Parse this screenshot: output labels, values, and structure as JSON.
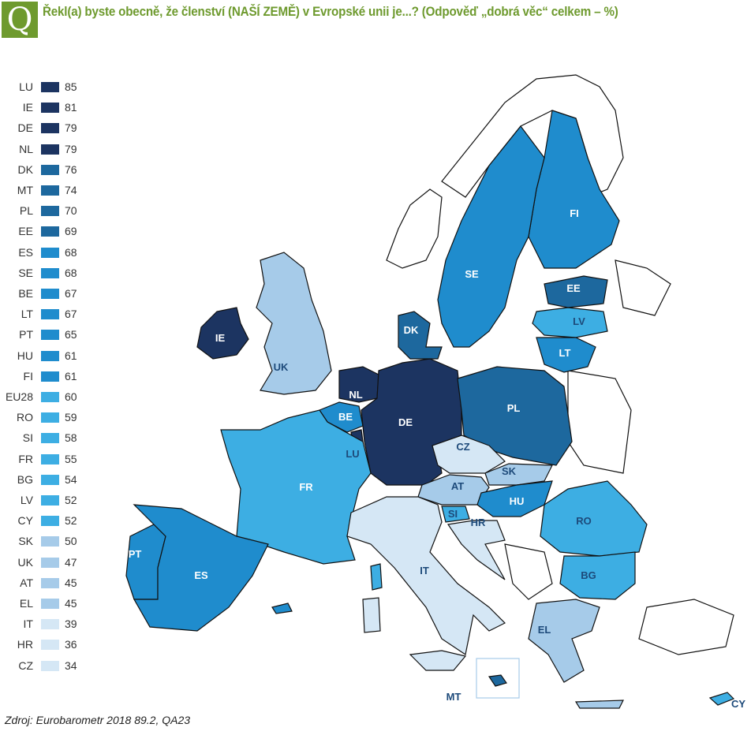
{
  "header": {
    "q_letter": "Q",
    "title": "Řekl(a) byste obecně, že členství (NAŠÍ ZEMĚ) v Evropské unii je...? (Odpověď „dobrá věc“ celkem – %)"
  },
  "colors": {
    "accent": "#6e9a2e",
    "c1": "#1c3461",
    "c2": "#1d689e",
    "c3": "#1f8ccd",
    "c4": "#3daee3",
    "c5": "#a6cbe9",
    "c6": "#d5e7f5"
  },
  "legend": [
    {
      "code": "LU",
      "value": 85,
      "tier": "c1"
    },
    {
      "code": "IE",
      "value": 81,
      "tier": "c1"
    },
    {
      "code": "DE",
      "value": 79,
      "tier": "c1"
    },
    {
      "code": "NL",
      "value": 79,
      "tier": "c1"
    },
    {
      "code": "DK",
      "value": 76,
      "tier": "c2"
    },
    {
      "code": "MT",
      "value": 74,
      "tier": "c2"
    },
    {
      "code": "PL",
      "value": 70,
      "tier": "c2"
    },
    {
      "code": "EE",
      "value": 69,
      "tier": "c2"
    },
    {
      "code": "ES",
      "value": 68,
      "tier": "c3"
    },
    {
      "code": "SE",
      "value": 68,
      "tier": "c3"
    },
    {
      "code": "BE",
      "value": 67,
      "tier": "c3"
    },
    {
      "code": "LT",
      "value": 67,
      "tier": "c3"
    },
    {
      "code": "PT",
      "value": 65,
      "tier": "c3"
    },
    {
      "code": "HU",
      "value": 61,
      "tier": "c3"
    },
    {
      "code": "FI",
      "value": 61,
      "tier": "c3"
    },
    {
      "code": "EU28",
      "value": 60,
      "tier": "c4"
    },
    {
      "code": "RO",
      "value": 59,
      "tier": "c4"
    },
    {
      "code": "SI",
      "value": 58,
      "tier": "c4"
    },
    {
      "code": "FR",
      "value": 55,
      "tier": "c4"
    },
    {
      "code": "BG",
      "value": 54,
      "tier": "c4"
    },
    {
      "code": "LV",
      "value": 52,
      "tier": "c4"
    },
    {
      "code": "CY",
      "value": 52,
      "tier": "c4"
    },
    {
      "code": "SK",
      "value": 50,
      "tier": "c5"
    },
    {
      "code": "UK",
      "value": 47,
      "tier": "c5"
    },
    {
      "code": "AT",
      "value": 45,
      "tier": "c5"
    },
    {
      "code": "EL",
      "value": 45,
      "tier": "c5"
    },
    {
      "code": "IT",
      "value": 39,
      "tier": "c6"
    },
    {
      "code": "HR",
      "value": 36,
      "tier": "c6"
    },
    {
      "code": "CZ",
      "value": 34,
      "tier": "c6"
    }
  ],
  "map_labels": [
    "FI",
    "SE",
    "EE",
    "LV",
    "LT",
    "DK",
    "IE",
    "UK",
    "NL",
    "BE",
    "LU",
    "DE",
    "PL",
    "CZ",
    "SK",
    "AT",
    "HU",
    "SI",
    "HR",
    "RO",
    "BG",
    "FR",
    "PT",
    "ES",
    "IT",
    "EL",
    "MT",
    "CY"
  ],
  "source": "Zdroj: Eurobarometr  2018 89.2, QA23"
}
